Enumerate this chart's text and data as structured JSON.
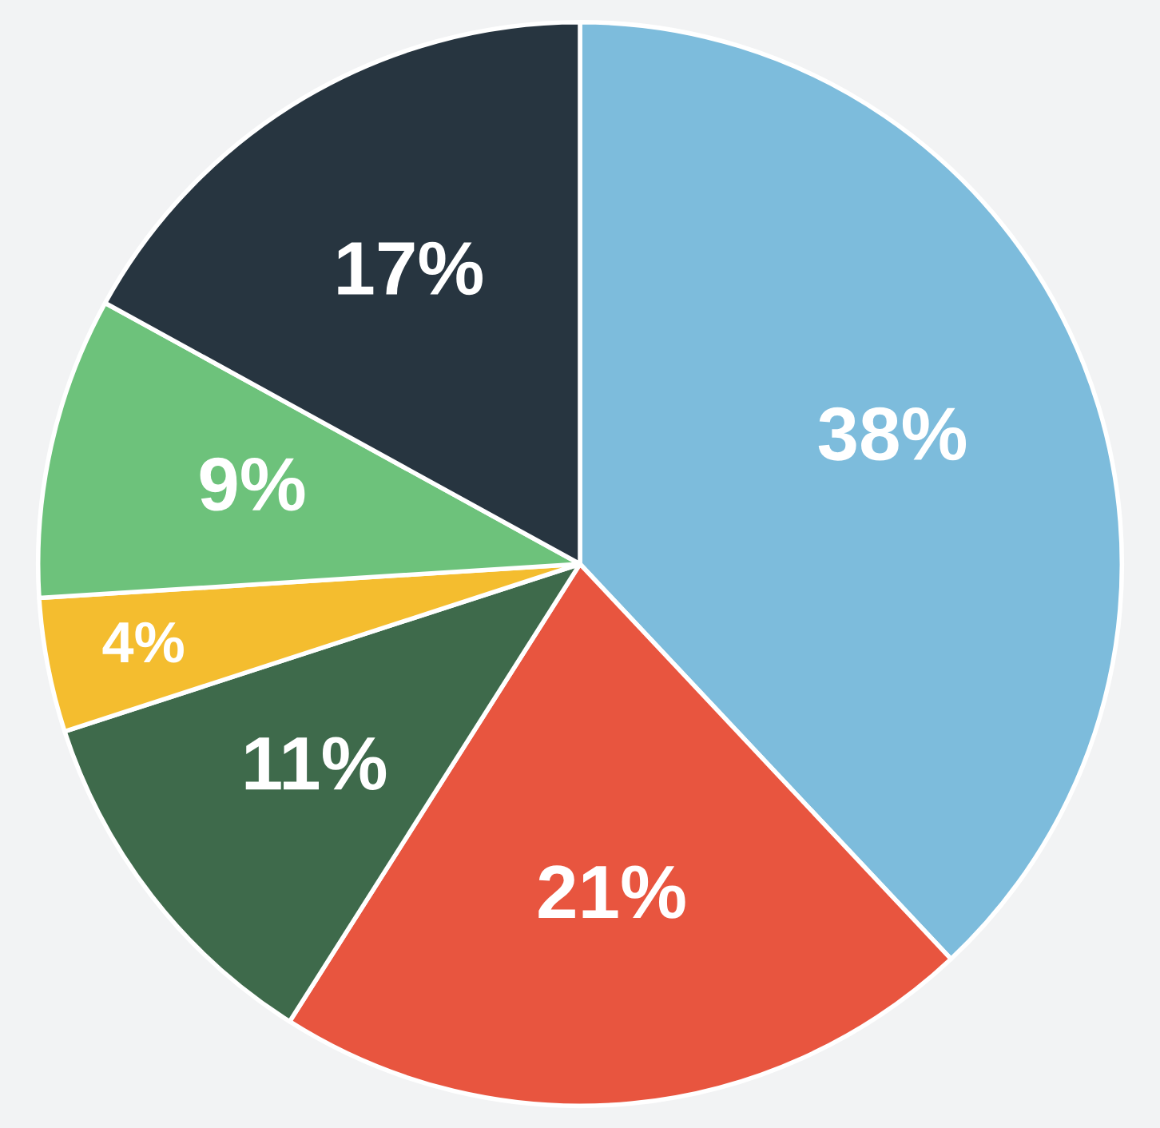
{
  "chart_data": {
    "type": "pie",
    "categories": [
      null,
      null,
      null,
      null,
      null,
      null
    ],
    "values": [
      38,
      21,
      11,
      4,
      9,
      17
    ],
    "colors": [
      "#7dbcdc",
      "#e8553f",
      "#3e6a4b",
      "#f4bd2f",
      "#6dc27b",
      "#273540"
    ],
    "value_labels": [
      "38%",
      "21%",
      "11%",
      "4%",
      "9%",
      "17%"
    ]
  }
}
